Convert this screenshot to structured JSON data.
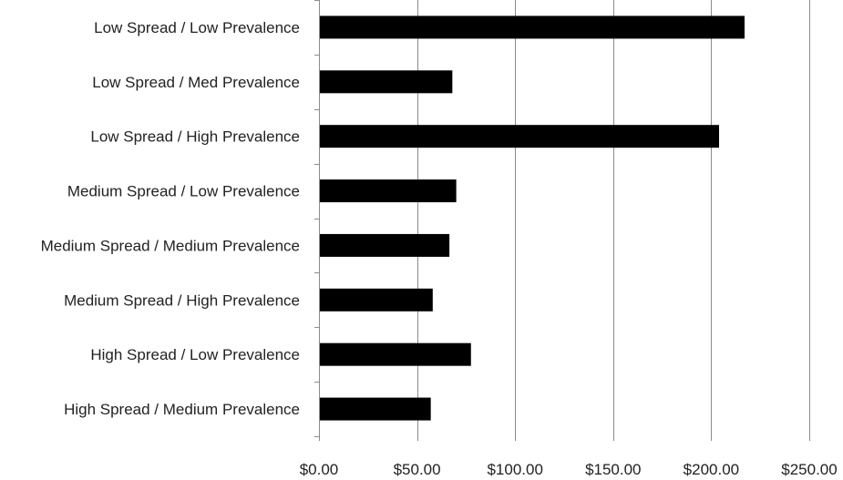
{
  "chart_data": {
    "type": "bar",
    "orientation": "horizontal",
    "categories": [
      "Low Spread / Low Prevalence",
      "Low Spread / Med Prevalence",
      "Low Spread / High Prevalence",
      "Medium Spread / Low Prevalence",
      "Medium Spread / Medium Prevalence",
      "Medium Spread / High Prevalence",
      "High Spread / Low Prevalence",
      "High Spread / Medium Prevalence"
    ],
    "values": [
      217,
      68,
      204,
      70,
      66.5,
      58,
      77.5,
      57
    ],
    "xlim": [
      0,
      250
    ],
    "x_ticks": [
      0,
      50,
      100,
      150,
      200,
      250
    ],
    "x_tick_labels": [
      "$0.00",
      "$50.00",
      "$100.00",
      "$150.00",
      "$200.00",
      "$250.00"
    ],
    "grid": "vertical",
    "legend": "none",
    "title": "",
    "xlabel": "",
    "ylabel": "",
    "colors": {
      "bar": "#000000",
      "grid": "#8c8c8c",
      "axis": "#8c8c8c",
      "text": "#222222"
    }
  }
}
